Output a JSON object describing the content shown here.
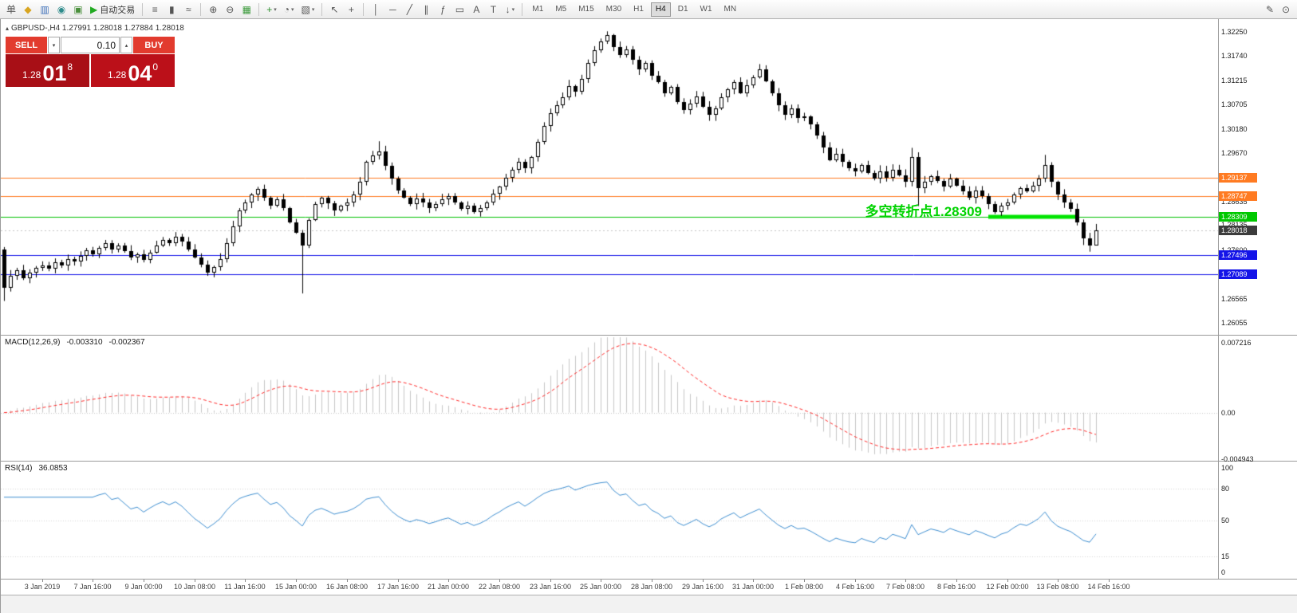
{
  "toolbar": {
    "caret_glyph": "▾",
    "groups": [
      [
        {
          "name": "new-order-button",
          "label": "单"
        },
        {
          "name": "data-window-icon",
          "glyph": "◆",
          "color": "#d8a520"
        },
        {
          "name": "market-watch-icon",
          "glyph": "▥",
          "color": "#3d6fb8"
        },
        {
          "name": "news-icon",
          "glyph": "◉",
          "color": "#2e8b8b"
        },
        {
          "name": "terminal-icon",
          "glyph": "▣",
          "color": "#4a8f3c"
        },
        {
          "name": "auto-trading-button",
          "glyph": "▶",
          "color": "#22aa22",
          "label": "自动交易"
        }
      ],
      [
        {
          "name": "bar-chart-icon",
          "glyph": "≡"
        },
        {
          "name": "candlestick-chart-icon",
          "glyph": "▮"
        },
        {
          "name": "line-chart-icon",
          "glyph": "≈"
        }
      ],
      [
        {
          "name": "zoom-in-icon",
          "glyph": "⊕"
        },
        {
          "name": "zoom-out-icon",
          "glyph": "⊖"
        },
        {
          "name": "tile-windows-icon",
          "glyph": "▦",
          "color": "#3a9a3a"
        }
      ],
      [
        {
          "name": "indicators-icon",
          "glyph": "+",
          "color": "#2c8f2c",
          "caret": true
        },
        {
          "name": "periods-icon",
          "glyph": "◔",
          "caret": true
        },
        {
          "name": "templates-icon",
          "glyph": "▧",
          "caret": true
        }
      ],
      [
        {
          "name": "cursor-icon",
          "glyph": "↖"
        },
        {
          "name": "crosshair-icon",
          "glyph": "+"
        }
      ],
      [
        {
          "name": "vertical-line-icon",
          "glyph": "│"
        },
        {
          "name": "horizontal-line-icon",
          "glyph": "─"
        },
        {
          "name": "trendline-icon",
          "glyph": "╱"
        },
        {
          "name": "channel-icon",
          "glyph": "∥"
        },
        {
          "name": "fibonacci-icon",
          "glyph": "ƒ"
        },
        {
          "name": "shapes-icon",
          "glyph": "▭"
        },
        {
          "name": "text-icon",
          "glyph": "A"
        },
        {
          "name": "label-icon",
          "glyph": "T"
        },
        {
          "name": "arrows-icon",
          "glyph": "↓",
          "caret": true
        }
      ]
    ],
    "timeframes": [
      "M1",
      "M5",
      "M15",
      "M30",
      "H1",
      "H4",
      "D1",
      "W1",
      "MN"
    ],
    "active_timeframe": "H4",
    "right_tools": [
      {
        "name": "edit-chart-icon",
        "glyph": "✎"
      },
      {
        "name": "search-icon",
        "glyph": "⊙"
      }
    ]
  },
  "symbol_header": {
    "arrow": "▴",
    "text": "GBPUSD-,H4  1.27991 1.28018 1.27884 1.28018"
  },
  "trade_panel": {
    "sell_label": "SELL",
    "buy_label": "BUY",
    "volume": "0.10",
    "caret_down": "▾",
    "caret_up": "▴",
    "sell_price_main": "1.28",
    "sell_price_big": "01",
    "sell_price_sup": "8",
    "buy_price_main": "1.28",
    "buy_price_big": "04",
    "buy_price_sup": "0"
  },
  "annotation": {
    "text": "多空转折点1.28309"
  },
  "price_axis": {
    "labels": [
      {
        "text": "1.32250",
        "price": 1.3225
      },
      {
        "text": "1.31740",
        "price": 1.3174
      },
      {
        "text": "1.31215",
        "price": 1.31215
      },
      {
        "text": "1.30705",
        "price": 1.30705
      },
      {
        "text": "1.30180",
        "price": 1.3018
      },
      {
        "text": "1.29670",
        "price": 1.2967
      },
      {
        "text": "1.28635",
        "price": 1.28635
      },
      {
        "text": "1.28135",
        "price": 1.28135
      },
      {
        "text": "1.27600",
        "price": 1.276
      },
      {
        "text": "1.26565",
        "price": 1.26565
      },
      {
        "text": "1.26055",
        "price": 1.26055
      }
    ]
  },
  "price_tags": [
    {
      "text": "1.29137",
      "price": 1.29137,
      "bg": "#ff7b22"
    },
    {
      "text": "1.28747",
      "price": 1.28747,
      "bg": "#ff7b22"
    },
    {
      "text": "1.28309",
      "price": 1.28309,
      "bg": "#00c800"
    },
    {
      "text": "1.28018",
      "price": 1.28018,
      "bg": "#3c3c3c"
    },
    {
      "text": "1.27496",
      "price": 1.27496,
      "bg": "#1414e8"
    },
    {
      "text": "1.27089",
      "price": 1.27089,
      "bg": "#1414e8"
    }
  ],
  "hlines": [
    {
      "price": 1.29137,
      "color": "#ff7b22"
    },
    {
      "price": 1.28747,
      "color": "#ff7b22"
    },
    {
      "price": 1.28309,
      "color": "#00c000"
    },
    {
      "price": 1.28018,
      "color": "#c4c4c4",
      "dash": [
        2,
        3
      ]
    },
    {
      "price": 1.27496,
      "color": "#1414e8"
    },
    {
      "price": 1.27089,
      "color": "#1414e8"
    }
  ],
  "green_zone": {
    "price": 1.28309,
    "from_bar": 155,
    "to_bar": 169,
    "color": "#00e400"
  },
  "chart_data": {
    "type": "candlestick",
    "symbol": "GBPUSD",
    "timeframe": "H4",
    "current_bar": {
      "open": 1.27991,
      "high": 1.28018,
      "low": 1.27884,
      "close": 1.28018
    },
    "ylim": [
      1.258,
      1.3252
    ],
    "bar_spacing": 7.96,
    "x_offset": 4,
    "candle_up_color": "#ffffff",
    "candle_down_color": "#000000",
    "candle_outline": "#000000",
    "closes": [
      1.268,
      1.2705,
      1.2718,
      1.27,
      1.2712,
      1.2722,
      1.2728,
      1.2721,
      1.2735,
      1.2728,
      1.2742,
      1.2736,
      1.2748,
      1.276,
      1.2752,
      1.2765,
      1.2775,
      1.2762,
      1.277,
      1.2758,
      1.2745,
      1.2752,
      1.274,
      1.2755,
      1.277,
      1.2782,
      1.2775,
      1.2788,
      1.2778,
      1.2762,
      1.2745,
      1.273,
      1.2712,
      1.2725,
      1.2742,
      1.2775,
      1.281,
      1.2845,
      1.2862,
      1.2878,
      1.289,
      1.2872,
      1.2855,
      1.2868,
      1.285,
      1.282,
      1.2798,
      1.277,
      1.2825,
      1.2858,
      1.2872,
      1.286,
      1.2845,
      1.2855,
      1.2862,
      1.2878,
      1.2905,
      1.2948,
      1.2962,
      1.297,
      1.294,
      1.2912,
      1.2888,
      1.2872,
      1.2858,
      1.287,
      1.2862,
      1.285,
      1.2858,
      1.2868,
      1.2875,
      1.2862,
      1.2848,
      1.2855,
      1.2842,
      1.285,
      1.2862,
      1.288,
      1.2895,
      1.2915,
      1.2932,
      1.2948,
      1.2935,
      1.2958,
      1.299,
      1.3025,
      1.3052,
      1.3068,
      1.3085,
      1.311,
      1.3098,
      1.3125,
      1.3158,
      1.3185,
      1.3205,
      1.3218,
      1.3192,
      1.3175,
      1.3188,
      1.3165,
      1.3145,
      1.3158,
      1.3132,
      1.3118,
      1.3095,
      1.3108,
      1.3075,
      1.3058,
      1.3072,
      1.3088,
      1.3065,
      1.3048,
      1.3062,
      1.3085,
      1.3102,
      1.3118,
      1.3095,
      1.3112,
      1.3128,
      1.3145,
      1.312,
      1.3095,
      1.3068,
      1.3048,
      1.3062,
      1.3042,
      1.3045,
      1.3028,
      1.3005,
      1.2978,
      1.2952,
      1.2965,
      1.2948,
      1.2935,
      1.2928,
      1.2942,
      1.2925,
      1.2912,
      1.2928,
      1.2915,
      1.2932,
      1.292,
      1.2905,
      1.2958,
      1.2892,
      1.2905,
      1.2918,
      1.2908,
      1.2895,
      1.2912,
      1.2898,
      1.2885,
      1.2872,
      1.2888,
      1.2875,
      1.2858,
      1.2842,
      1.2855,
      1.2862,
      1.2878,
      1.2892,
      1.2885,
      1.2898,
      1.2912,
      1.2942,
      1.2905,
      1.2878,
      1.2862,
      1.2848,
      1.282,
      1.2785,
      1.277,
      1.28018
    ],
    "overrides": {
      "0": {
        "o": 1.2762,
        "l": 1.2652
      },
      "47": {
        "l": 1.2668
      },
      "59": {
        "h": 1.2992
      },
      "95": {
        "h": 1.3226
      },
      "143": {
        "h": 1.2978
      },
      "144": {
        "l": 1.2854
      },
      "164": {
        "h": 1.2963
      },
      "170": {
        "l": 1.2771
      },
      "171": {
        "l": 1.2757
      },
      "172": {
        "h": 1.2816,
        "l": 1.2774
      }
    }
  },
  "macd_panel": {
    "title": "MACD(12,26,9)",
    "value1": "-0.003310",
    "value2": "-0.002367",
    "params": {
      "fast": 12,
      "slow": 26,
      "signal": 9
    },
    "range": {
      "max": 0.008,
      "min": -0.005
    },
    "axis": [
      {
        "text": "0.007216",
        "value": 0.007216
      },
      {
        "text": "0.00",
        "value": 0
      },
      {
        "text": "-0.004943",
        "value": -0.004943
      }
    ],
    "hist_color": "#c6c6c6",
    "signal_color": "#ff2a2a"
  },
  "rsi_panel": {
    "title": "RSI(14)",
    "value": "36.0853",
    "period": 14,
    "levels": [
      100,
      80,
      50,
      15,
      0
    ],
    "dotted_levels": [
      80,
      50,
      15
    ],
    "line_color": "#3e8ed0"
  },
  "time_axis": {
    "labels": [
      {
        "text": "3 Jan 2019",
        "bar": 6
      },
      {
        "text": "7 Jan 16:00",
        "bar": 14
      },
      {
        "text": "9 Jan 00:00",
        "bar": 22
      },
      {
        "text": "10 Jan 08:00",
        "bar": 30
      },
      {
        "text": "11 Jan 16:00",
        "bar": 38
      },
      {
        "text": "15 Jan 00:00",
        "bar": 46
      },
      {
        "text": "16 Jan 08:00",
        "bar": 54
      },
      {
        "text": "17 Jan 16:00",
        "bar": 62
      },
      {
        "text": "21 Jan 00:00",
        "bar": 70
      },
      {
        "text": "22 Jan 08:00",
        "bar": 78
      },
      {
        "text": "23 Jan 16:00",
        "bar": 86
      },
      {
        "text": "25 Jan 00:00",
        "bar": 94
      },
      {
        "text": "28 Jan 08:00",
        "bar": 102
      },
      {
        "text": "29 Jan 16:00",
        "bar": 110
      },
      {
        "text": "31 Jan 00:00",
        "bar": 118
      },
      {
        "text": "1 Feb 08:00",
        "bar": 126
      },
      {
        "text": "4 Feb 16:00",
        "bar": 134
      },
      {
        "text": "7 Feb 08:00",
        "bar": 142
      },
      {
        "text": "8 Feb 16:00",
        "bar": 150
      },
      {
        "text": "12 Feb 00:00",
        "bar": 158
      },
      {
        "text": "13 Feb 08:00",
        "bar": 166
      },
      {
        "text": "14 Feb 16:00",
        "bar": 174
      }
    ]
  }
}
